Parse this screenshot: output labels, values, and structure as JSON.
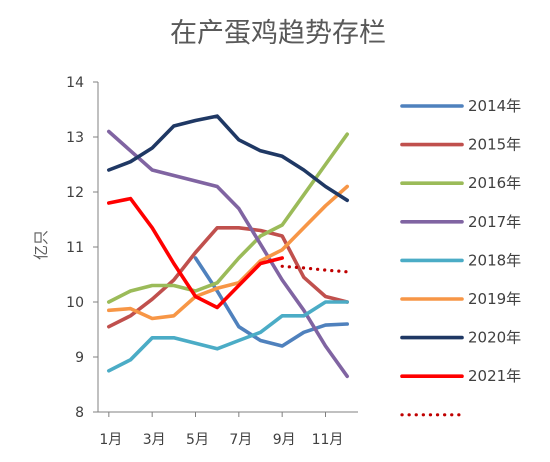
{
  "chart_data": {
    "type": "line",
    "title": "在产蛋鸡趋势存栏",
    "ylabel": "亿只",
    "xlabel": "",
    "ylim": [
      8,
      14
    ],
    "yticks": [
      8,
      9,
      10,
      11,
      12,
      13,
      14
    ],
    "grid": false,
    "legend_position": "right",
    "x": [
      1,
      2,
      3,
      4,
      5,
      6,
      7,
      8,
      9,
      10,
      11,
      12
    ],
    "xtick_labels": [
      "1月",
      "3月",
      "5月",
      "7月",
      "9月",
      "11月"
    ],
    "xtick_positions": [
      1,
      3,
      5,
      7,
      9,
      11
    ],
    "series": [
      {
        "name": "2014年",
        "color": "#4F81BD",
        "style": "solid",
        "points": [
          [
            5,
            10.8
          ],
          [
            6,
            10.2
          ],
          [
            7,
            9.55
          ],
          [
            8,
            9.3
          ],
          [
            9,
            9.2
          ],
          [
            10,
            9.45
          ],
          [
            11,
            9.58
          ],
          [
            12,
            9.6
          ]
        ]
      },
      {
        "name": "2015年",
        "color": "#C0504D",
        "style": "solid",
        "points": [
          [
            1,
            9.55
          ],
          [
            2,
            9.75
          ],
          [
            3,
            10.05
          ],
          [
            4,
            10.4
          ],
          [
            5,
            10.9
          ],
          [
            6,
            11.35
          ],
          [
            7,
            11.35
          ],
          [
            8,
            11.3
          ],
          [
            9,
            11.2
          ],
          [
            10,
            10.45
          ],
          [
            11,
            10.1
          ],
          [
            12,
            10.0
          ]
        ]
      },
      {
        "name": "2016年",
        "color": "#9BBB59",
        "style": "solid",
        "points": [
          [
            1,
            10.0
          ],
          [
            2,
            10.2
          ],
          [
            3,
            10.3
          ],
          [
            4,
            10.3
          ],
          [
            5,
            10.2
          ],
          [
            6,
            10.35
          ],
          [
            7,
            10.8
          ],
          [
            8,
            11.2
          ],
          [
            9,
            11.4
          ],
          [
            10,
            11.95
          ],
          [
            11,
            12.5
          ],
          [
            12,
            13.05
          ]
        ]
      },
      {
        "name": "2017年",
        "color": "#8064A2",
        "style": "solid",
        "points": [
          [
            1,
            13.1
          ],
          [
            2,
            12.75
          ],
          [
            3,
            12.4
          ],
          [
            4,
            12.3
          ],
          [
            5,
            12.2
          ],
          [
            6,
            12.1
          ],
          [
            7,
            11.7
          ],
          [
            8,
            11.05
          ],
          [
            9,
            10.4
          ],
          [
            10,
            9.85
          ],
          [
            11,
            9.2
          ],
          [
            12,
            8.65
          ]
        ]
      },
      {
        "name": "2018年",
        "color": "#4BACC6",
        "style": "solid",
        "points": [
          [
            1,
            8.75
          ],
          [
            2,
            8.95
          ],
          [
            3,
            9.35
          ],
          [
            4,
            9.35
          ],
          [
            5,
            9.25
          ],
          [
            6,
            9.15
          ],
          [
            7,
            9.3
          ],
          [
            8,
            9.45
          ],
          [
            9,
            9.75
          ],
          [
            10,
            9.75
          ],
          [
            11,
            10.0
          ],
          [
            12,
            10.0
          ]
        ]
      },
      {
        "name": "2019年",
        "color": "#F79646",
        "style": "solid",
        "points": [
          [
            1,
            9.85
          ],
          [
            2,
            9.88
          ],
          [
            3,
            9.7
          ],
          [
            4,
            9.75
          ],
          [
            5,
            10.1
          ],
          [
            6,
            10.25
          ],
          [
            7,
            10.35
          ],
          [
            8,
            10.75
          ],
          [
            9,
            10.95
          ],
          [
            10,
            11.35
          ],
          [
            11,
            11.75
          ],
          [
            12,
            12.1
          ]
        ]
      },
      {
        "name": "2020年",
        "color": "#1F3864",
        "style": "solid",
        "points": [
          [
            1,
            12.4
          ],
          [
            2,
            12.55
          ],
          [
            3,
            12.8
          ],
          [
            4,
            13.2
          ],
          [
            5,
            13.3
          ],
          [
            6,
            13.38
          ],
          [
            7,
            12.95
          ],
          [
            8,
            12.75
          ],
          [
            9,
            12.65
          ],
          [
            10,
            12.4
          ],
          [
            11,
            12.1
          ],
          [
            12,
            11.85
          ]
        ]
      },
      {
        "name": "2021年",
        "color": "#FF0000",
        "style": "solid",
        "points": [
          [
            1,
            11.8
          ],
          [
            2,
            11.88
          ],
          [
            3,
            11.35
          ],
          [
            4,
            10.7
          ],
          [
            5,
            10.1
          ],
          [
            6,
            9.9
          ],
          [
            7,
            10.3
          ],
          [
            8,
            10.7
          ],
          [
            9,
            10.8
          ]
        ]
      },
      {
        "name": "",
        "color": "#C00000",
        "style": "dotted",
        "points": [
          [
            9,
            10.65
          ],
          [
            10,
            10.62
          ],
          [
            11,
            10.58
          ],
          [
            12,
            10.55
          ]
        ]
      }
    ]
  }
}
